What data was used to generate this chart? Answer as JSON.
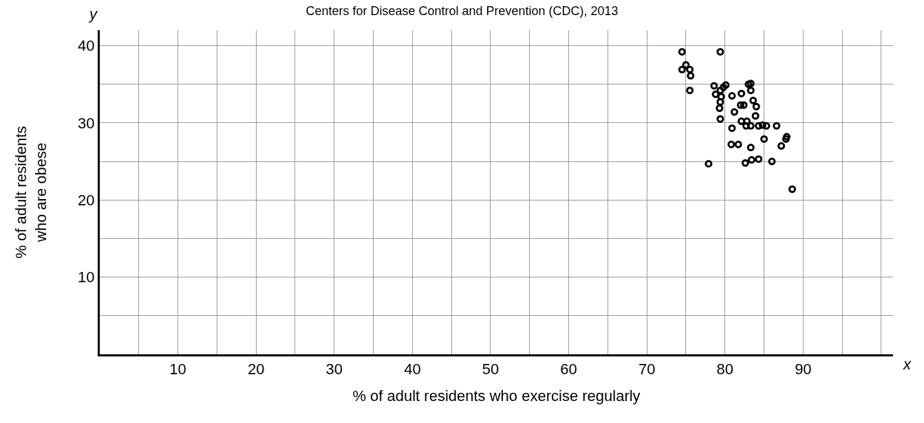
{
  "chart_data": {
    "type": "scatter",
    "subtitle": "Centers for Disease Control and Prevention (CDC), 2013",
    "xlabel": "% of adult residents who exercise regularly",
    "ylabel": "% of adult residents\nwho are obese",
    "annotations": [
      "x",
      "y"
    ],
    "x": [
      74.5,
      79.4,
      75.0,
      74.5,
      75.5,
      75.6,
      75.5,
      78.6,
      78.8,
      79.4,
      79.8,
      80.1,
      79.5,
      79.4,
      79.3,
      79.4,
      80.9,
      82.1,
      83.0,
      83.3,
      83.3,
      83.6,
      84.0,
      83.9,
      81.2,
      82.0,
      82.4,
      80.9,
      82.1,
      82.7,
      82.8,
      83.3,
      84.3,
      84.8,
      85.3,
      86.6,
      85.0,
      80.8,
      81.7,
      83.3,
      87.8,
      87.2,
      87.9,
      82.6,
      83.4,
      84.3,
      86.0,
      77.9,
      88.6
    ],
    "values": [
      39.2,
      39.2,
      37.5,
      36.9,
      36.9,
      36.1,
      34.2,
      34.8,
      33.7,
      34.2,
      34.6,
      34.9,
      33.4,
      32.7,
      31.9,
      30.5,
      33.5,
      33.8,
      35.0,
      35.1,
      34.2,
      32.9,
      32.1,
      30.9,
      31.4,
      32.3,
      32.3,
      29.3,
      30.2,
      29.6,
      30.2,
      29.6,
      29.6,
      29.7,
      29.6,
      29.6,
      27.9,
      27.2,
      27.2,
      26.8,
      27.9,
      27.0,
      28.2,
      24.8,
      25.2,
      25.3,
      25.0,
      24.7,
      21.4
    ],
    "color": "#000000",
    "marker": "circle",
    "grid": true,
    "xlim": [
      0,
      101.5
    ],
    "ylim": [
      0,
      42
    ],
    "xticks": [
      {
        "value": 5,
        "label": null
      },
      10,
      {
        "value": 15,
        "label": null
      },
      20,
      {
        "value": 25,
        "label": null
      },
      30,
      {
        "value": 35,
        "label": null
      },
      40,
      {
        "value": 45,
        "label": null
      },
      50,
      {
        "value": 55,
        "label": null
      },
      60,
      {
        "value": 65,
        "label": null
      },
      70,
      {
        "value": 75,
        "label": null
      },
      80,
      {
        "value": 85,
        "label": null
      },
      90,
      {
        "value": 95,
        "label": null
      },
      {
        "value": 100,
        "label": null
      }
    ],
    "yticks": [
      {
        "value": 5,
        "label": null
      },
      10,
      {
        "value": 15,
        "label": null
      },
      20,
      {
        "value": 25,
        "label": null
      },
      30,
      {
        "value": 35,
        "label": null
      },
      40
    ]
  }
}
